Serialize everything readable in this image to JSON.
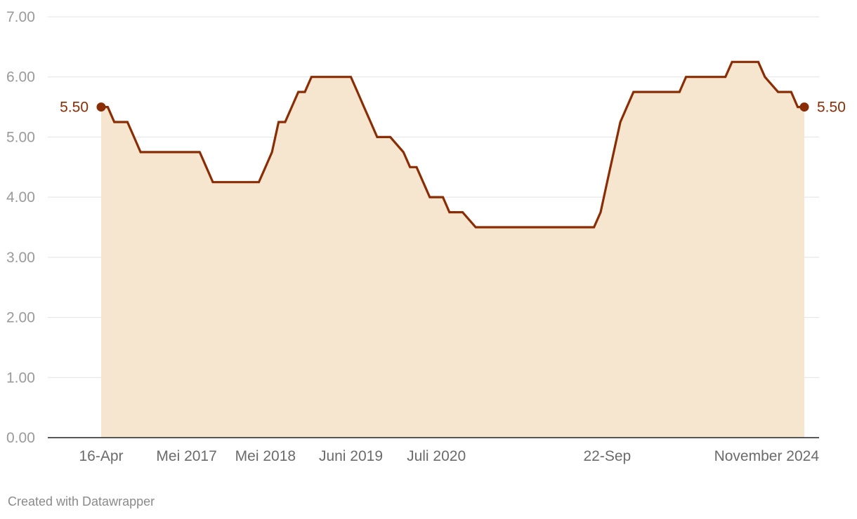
{
  "colors": {
    "line": "#8a2d04",
    "area": "#f7e6cf",
    "grid": "#e2e2e2",
    "axis": "#222222",
    "tick_y": "#9a9a9a",
    "tick_x": "#6b6b6b"
  },
  "footer": {
    "text": "Created with Datawrapper"
  },
  "chart_data": {
    "type": "area",
    "title": "",
    "xlabel": "",
    "ylabel": "",
    "x_range": [
      "2016-04",
      "2024-11"
    ],
    "ylim": [
      0,
      7
    ],
    "y_ticks": [
      "0.00",
      "1.00",
      "2.00",
      "3.00",
      "4.00",
      "5.00",
      "6.00",
      "7.00"
    ],
    "x_ticks": [
      {
        "date": "2016-04",
        "label": "16-Apr"
      },
      {
        "date": "2017-05",
        "label": "Mei 2017"
      },
      {
        "date": "2018-05",
        "label": "Mei 2018"
      },
      {
        "date": "2019-06",
        "label": "Juni 2019"
      },
      {
        "date": "2020-07",
        "label": "Juli 2020"
      },
      {
        "date": "2022-09",
        "label": "22-Sep"
      },
      {
        "date": "2024-11",
        "label": "November 2024"
      }
    ],
    "grid": true,
    "series": [
      {
        "points": [
          [
            "2016-04",
            5.5
          ],
          [
            "2016-05",
            5.5
          ],
          [
            "2016-06",
            5.25
          ],
          [
            "2016-08",
            5.25
          ],
          [
            "2016-09",
            5.0
          ],
          [
            "2016-10",
            4.75
          ],
          [
            "2017-07",
            4.75
          ],
          [
            "2017-08",
            4.5
          ],
          [
            "2017-09",
            4.25
          ],
          [
            "2018-04",
            4.25
          ],
          [
            "2018-05",
            4.5
          ],
          [
            "2018-06",
            4.75
          ],
          [
            "2018-07",
            5.25
          ],
          [
            "2018-08",
            5.25
          ],
          [
            "2018-09",
            5.5
          ],
          [
            "2018-10",
            5.75
          ],
          [
            "2018-11",
            5.75
          ],
          [
            "2018-12",
            6.0
          ],
          [
            "2019-06",
            6.0
          ],
          [
            "2019-07",
            5.75
          ],
          [
            "2019-08",
            5.5
          ],
          [
            "2019-09",
            5.25
          ],
          [
            "2019-10",
            5.0
          ],
          [
            "2019-12",
            5.0
          ],
          [
            "2020-02",
            4.75
          ],
          [
            "2020-03",
            4.5
          ],
          [
            "2020-04",
            4.5
          ],
          [
            "2020-05",
            4.25
          ],
          [
            "2020-06",
            4.0
          ],
          [
            "2020-08",
            4.0
          ],
          [
            "2020-09",
            3.75
          ],
          [
            "2020-11",
            3.75
          ],
          [
            "2021-01",
            3.5
          ],
          [
            "2022-07",
            3.5
          ],
          [
            "2022-08",
            3.75
          ],
          [
            "2022-09",
            4.25
          ],
          [
            "2022-10",
            4.75
          ],
          [
            "2022-11",
            5.25
          ],
          [
            "2022-12",
            5.5
          ],
          [
            "2023-01",
            5.75
          ],
          [
            "2023-08",
            5.75
          ],
          [
            "2023-09",
            6.0
          ],
          [
            "2024-03",
            6.0
          ],
          [
            "2024-04",
            6.25
          ],
          [
            "2024-08",
            6.25
          ],
          [
            "2024-09",
            6.0
          ],
          [
            "2024-11",
            5.75
          ],
          [
            "2025-01",
            5.75
          ],
          [
            "2025-02",
            5.5
          ],
          [
            "2025-03",
            5.5
          ]
        ]
      }
    ],
    "annotations": [
      {
        "text": "5.50",
        "at": "start"
      },
      {
        "text": "5.50",
        "at": "end"
      }
    ]
  }
}
